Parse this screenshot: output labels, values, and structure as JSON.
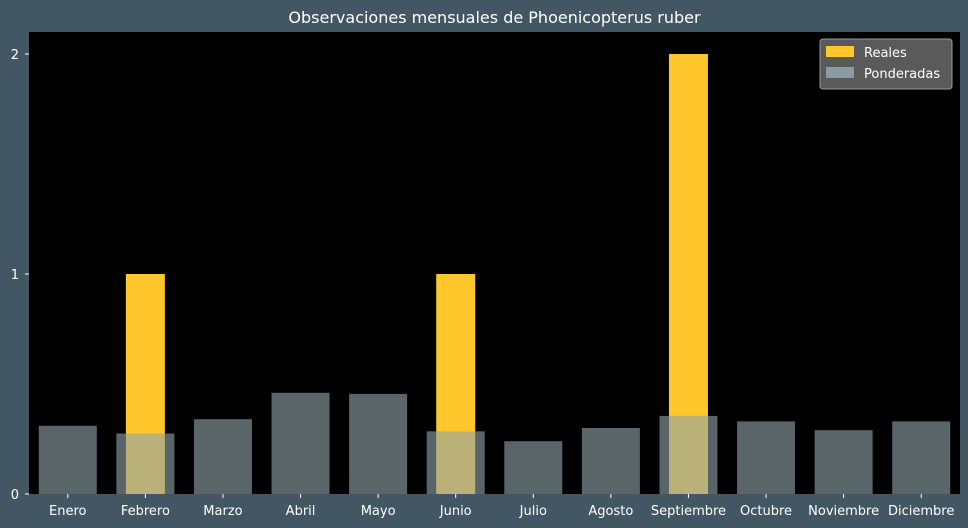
{
  "chart_data": {
    "type": "bar",
    "title": "Observaciones mensuales de Phoenicopterus ruber",
    "xlabel": "",
    "ylabel": "",
    "categories": [
      "Enero",
      "Febrero",
      "Marzo",
      "Abril",
      "Mayo",
      "Junio",
      "Julio",
      "Agosto",
      "Septiembre",
      "Octubre",
      "Noviembre",
      "Diciembre"
    ],
    "series": [
      {
        "name": "Reales",
        "color": "#FFC72C",
        "values": [
          0,
          1,
          0,
          0,
          0,
          1,
          0,
          0,
          2,
          0,
          0,
          0
        ]
      },
      {
        "name": "Ponderadas",
        "color": "#8FA3A9",
        "values": [
          0.31,
          0.275,
          0.34,
          0.46,
          0.455,
          0.285,
          0.24,
          0.3,
          0.355,
          0.33,
          0.29,
          0.33
        ]
      }
    ],
    "yticks": [
      0,
      1,
      2
    ],
    "ylim": [
      0,
      2.1
    ],
    "grid": false,
    "legend_position": "top-right"
  },
  "colors": {
    "background": "#425763",
    "plot_background": "#000000",
    "text": "#FFFFFF",
    "legend_background": "#5A5A5A"
  }
}
